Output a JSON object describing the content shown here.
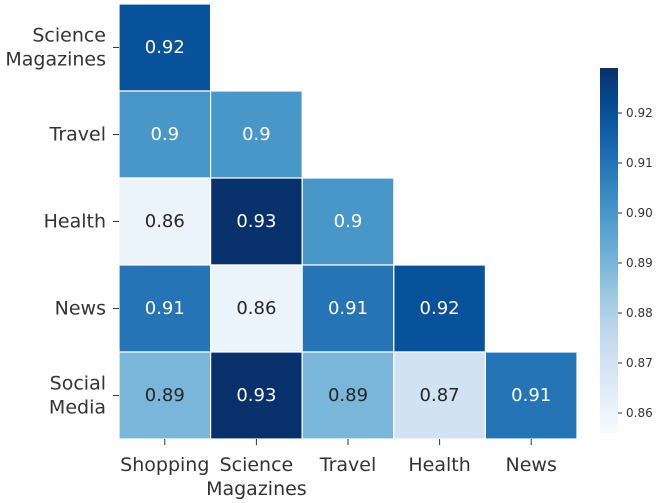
{
  "chart_data": {
    "type": "heatmap",
    "rows": [
      [
        "Science",
        "Magazines"
      ],
      [
        "Travel"
      ],
      [
        "Health"
      ],
      [
        "News"
      ],
      [
        "Social",
        "Media"
      ]
    ],
    "columns": [
      [
        "Shopping"
      ],
      [
        "Science",
        "Magazines"
      ],
      [
        "Travel"
      ],
      [
        "Health"
      ],
      [
        "News"
      ]
    ],
    "values": [
      [
        0.92,
        null,
        null,
        null,
        null
      ],
      [
        0.9,
        0.9,
        null,
        null,
        null
      ],
      [
        0.86,
        0.93,
        0.9,
        null,
        null
      ],
      [
        0.91,
        0.86,
        0.91,
        0.92,
        null
      ],
      [
        0.89,
        0.93,
        0.89,
        0.87,
        0.91
      ]
    ],
    "cell_labels": [
      [
        "0.92",
        "",
        "",
        "",
        ""
      ],
      [
        "0.9",
        "0.9",
        "",
        "",
        ""
      ],
      [
        "0.86",
        "0.93",
        "0.9",
        "",
        ""
      ],
      [
        "0.91",
        "0.86",
        "0.91",
        "0.92",
        ""
      ],
      [
        "0.89",
        "0.93",
        "0.89",
        "0.87",
        "0.91"
      ]
    ],
    "mask": "upper triangle hidden",
    "colormap": "Blues",
    "colorbar": {
      "min": 0.856,
      "max": 0.929,
      "ticks": [
        0.86,
        0.87,
        0.88,
        0.89,
        0.9,
        0.91,
        0.92
      ],
      "tick_labels": [
        "0.86",
        "0.87",
        "0.88",
        "0.89",
        "0.90",
        "0.91",
        "0.92"
      ],
      "position": "right"
    },
    "title": "",
    "xlabel": "",
    "ylabel": ""
  }
}
